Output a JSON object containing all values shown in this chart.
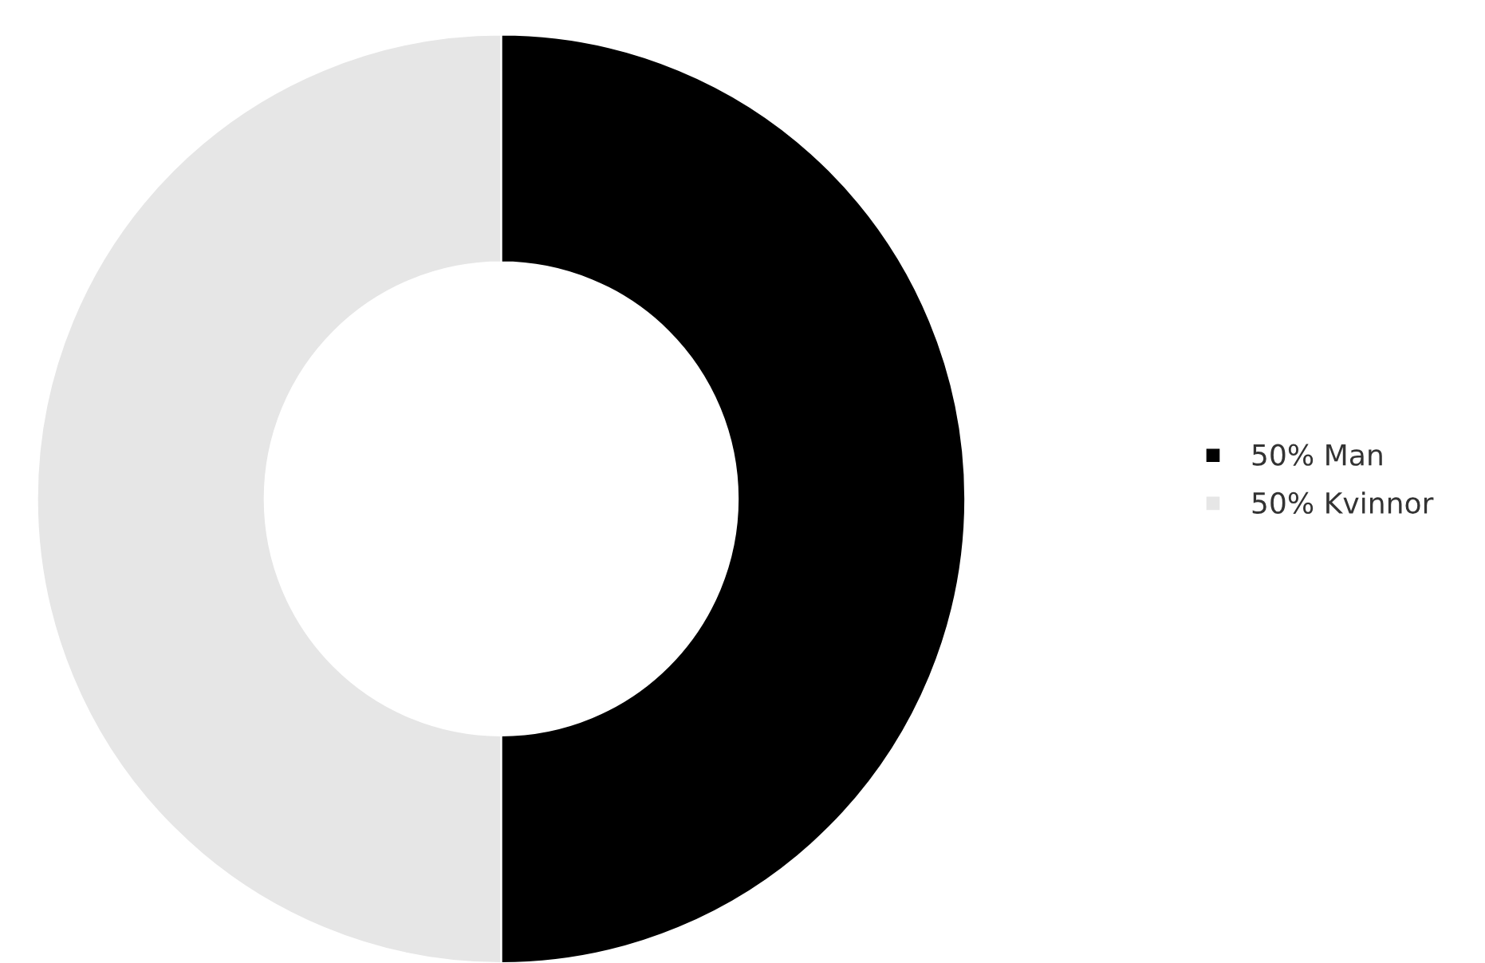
{
  "chart_data": {
    "type": "donut",
    "categories": [
      "50% Man",
      "50% Kvinnor"
    ],
    "values": [
      50,
      50
    ],
    "colors": [
      "#000000",
      "#e6e6e6"
    ],
    "legend": "right"
  }
}
